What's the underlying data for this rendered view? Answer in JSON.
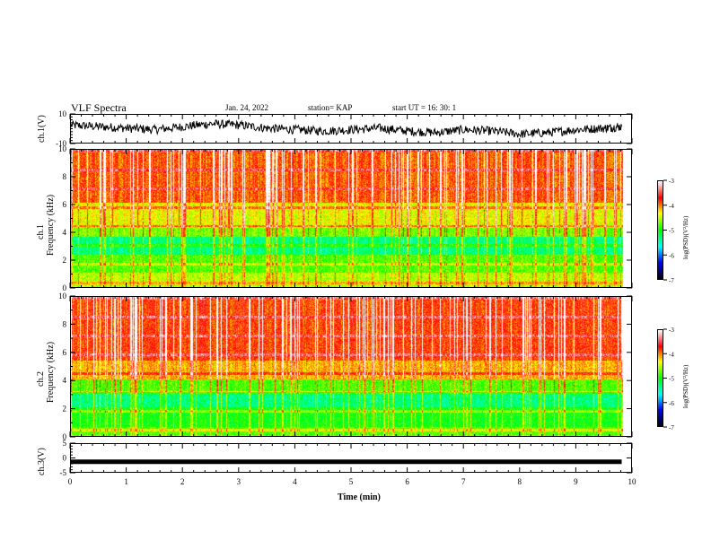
{
  "header": {
    "title": "VLF Spectra",
    "date": "Jan. 24, 2022",
    "station": "station= KAP",
    "start": "start  UT =   16: 30: 1"
  },
  "axes": {
    "ch1_wave_label": "ch.1(V)",
    "ch1_spec_label": "ch.1",
    "ch2_spec_label": "ch.2",
    "freq_label": "Frequency (kHz)",
    "ch3_label": "ch.3(V)",
    "xlabel": "Time (min)",
    "cbar_label": "log(PSD)(V²/Hz)"
  },
  "chart_data": [
    {
      "type": "line",
      "panel": "ch1-waveform",
      "ylabel": "ch.1(V)",
      "xlim": [
        0,
        10
      ],
      "ylim": [
        -10,
        10
      ],
      "yticks": [
        10,
        -10
      ],
      "x": [
        0,
        0.5,
        1,
        1.5,
        2,
        2.5,
        3,
        3.5,
        4,
        4.5,
        5,
        5.5,
        6,
        6.5,
        7,
        7.5,
        8,
        8.5,
        9,
        9.5,
        9.8
      ],
      "values": [
        3,
        2,
        1,
        0,
        2,
        4,
        3,
        1,
        0,
        -1,
        0,
        1,
        -1,
        -2,
        0,
        -1,
        -3,
        -2,
        0,
        1,
        2
      ]
    },
    {
      "type": "heatmap",
      "panel": "ch1-spectrogram",
      "ylabel": "Frequency (kHz)",
      "xlim": [
        0,
        10
      ],
      "ylim": [
        0,
        10
      ],
      "yticks": [
        0,
        2,
        4,
        6,
        8,
        10
      ],
      "colorbar": {
        "label": "log(PSD)(V²/Hz)",
        "range": [
          -7,
          -3
        ],
        "ticks": [
          -3,
          -4,
          -5,
          -6,
          -7
        ]
      }
    },
    {
      "type": "heatmap",
      "panel": "ch2-spectrogram",
      "ylabel": "Frequency (kHz)",
      "xlim": [
        0,
        10
      ],
      "ylim": [
        0,
        10
      ],
      "yticks": [
        0,
        2,
        4,
        6,
        8,
        10
      ],
      "colorbar": {
        "label": "log(PSD)(V²/Hz)",
        "range": [
          -7,
          -3
        ],
        "ticks": [
          -3,
          -4,
          -5,
          -6,
          -7
        ]
      }
    },
    {
      "type": "line",
      "panel": "ch3-waveform",
      "ylabel": "ch.3(V)",
      "xlim": [
        0,
        10
      ],
      "ylim": [
        -5,
        5
      ],
      "yticks": [
        5,
        0,
        -5
      ],
      "x": [
        0,
        9.8
      ],
      "values": [
        -1,
        -1
      ]
    }
  ],
  "xaxis": {
    "ticks": [
      "0",
      "1",
      "2",
      "3",
      "4",
      "5",
      "6",
      "7",
      "8",
      "9",
      "10"
    ]
  },
  "colors": {
    "wave": "#000000",
    "colormap": [
      "#000000",
      "#0000ff",
      "#00ffff",
      "#00ff00",
      "#ffff00",
      "#ff0000",
      "#ffffff"
    ]
  }
}
